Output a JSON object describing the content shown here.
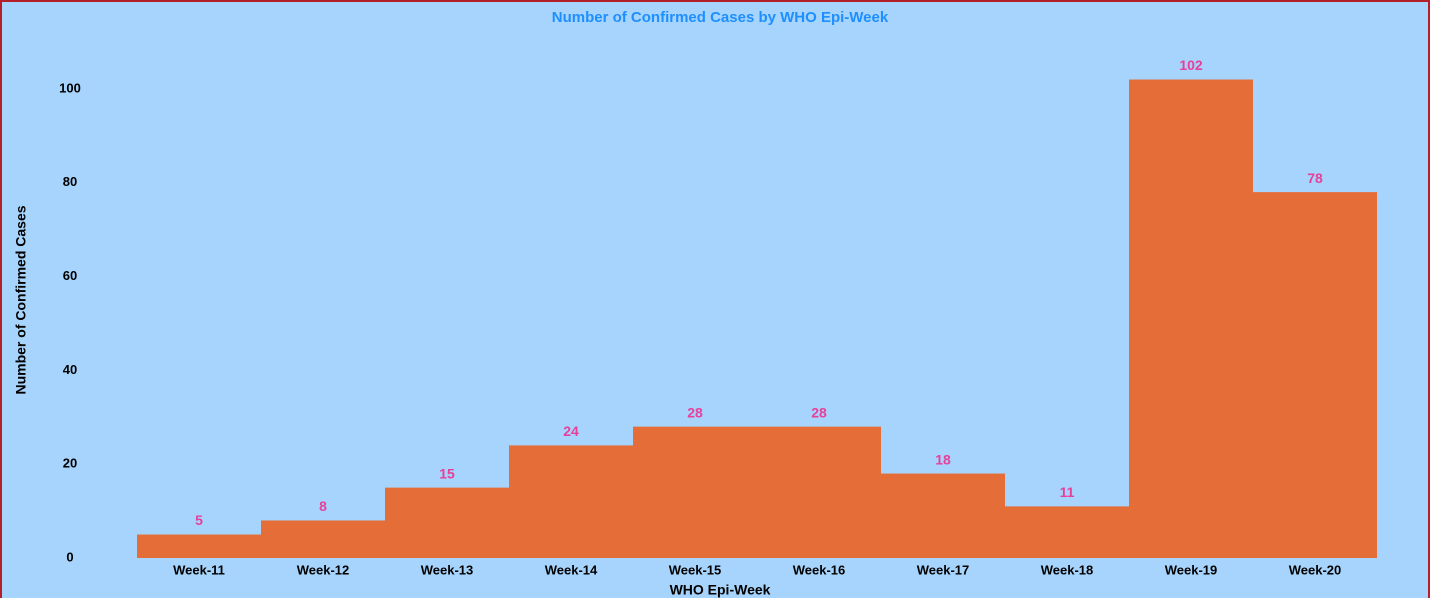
{
  "chart_data": {
    "type": "bar",
    "title": "Number of Confirmed Cases by WHO Epi-Week",
    "x_label": "WHO Epi-Week",
    "y_label": "Number of Confirmed Cases",
    "categories": [
      "Week-11",
      "Week-12",
      "Week-13",
      "Week-14",
      "Week-15",
      "Week-16",
      "Week-17",
      "Week-18",
      "Week-19",
      "Week-20"
    ],
    "values": [
      5,
      8,
      15,
      24,
      28,
      28,
      18,
      11,
      102,
      78
    ],
    "color": "#e56d38",
    "ylim": [
      0,
      110
    ],
    "yticks": [
      0,
      20,
      40,
      60,
      80,
      100
    ],
    "grid": false
  }
}
